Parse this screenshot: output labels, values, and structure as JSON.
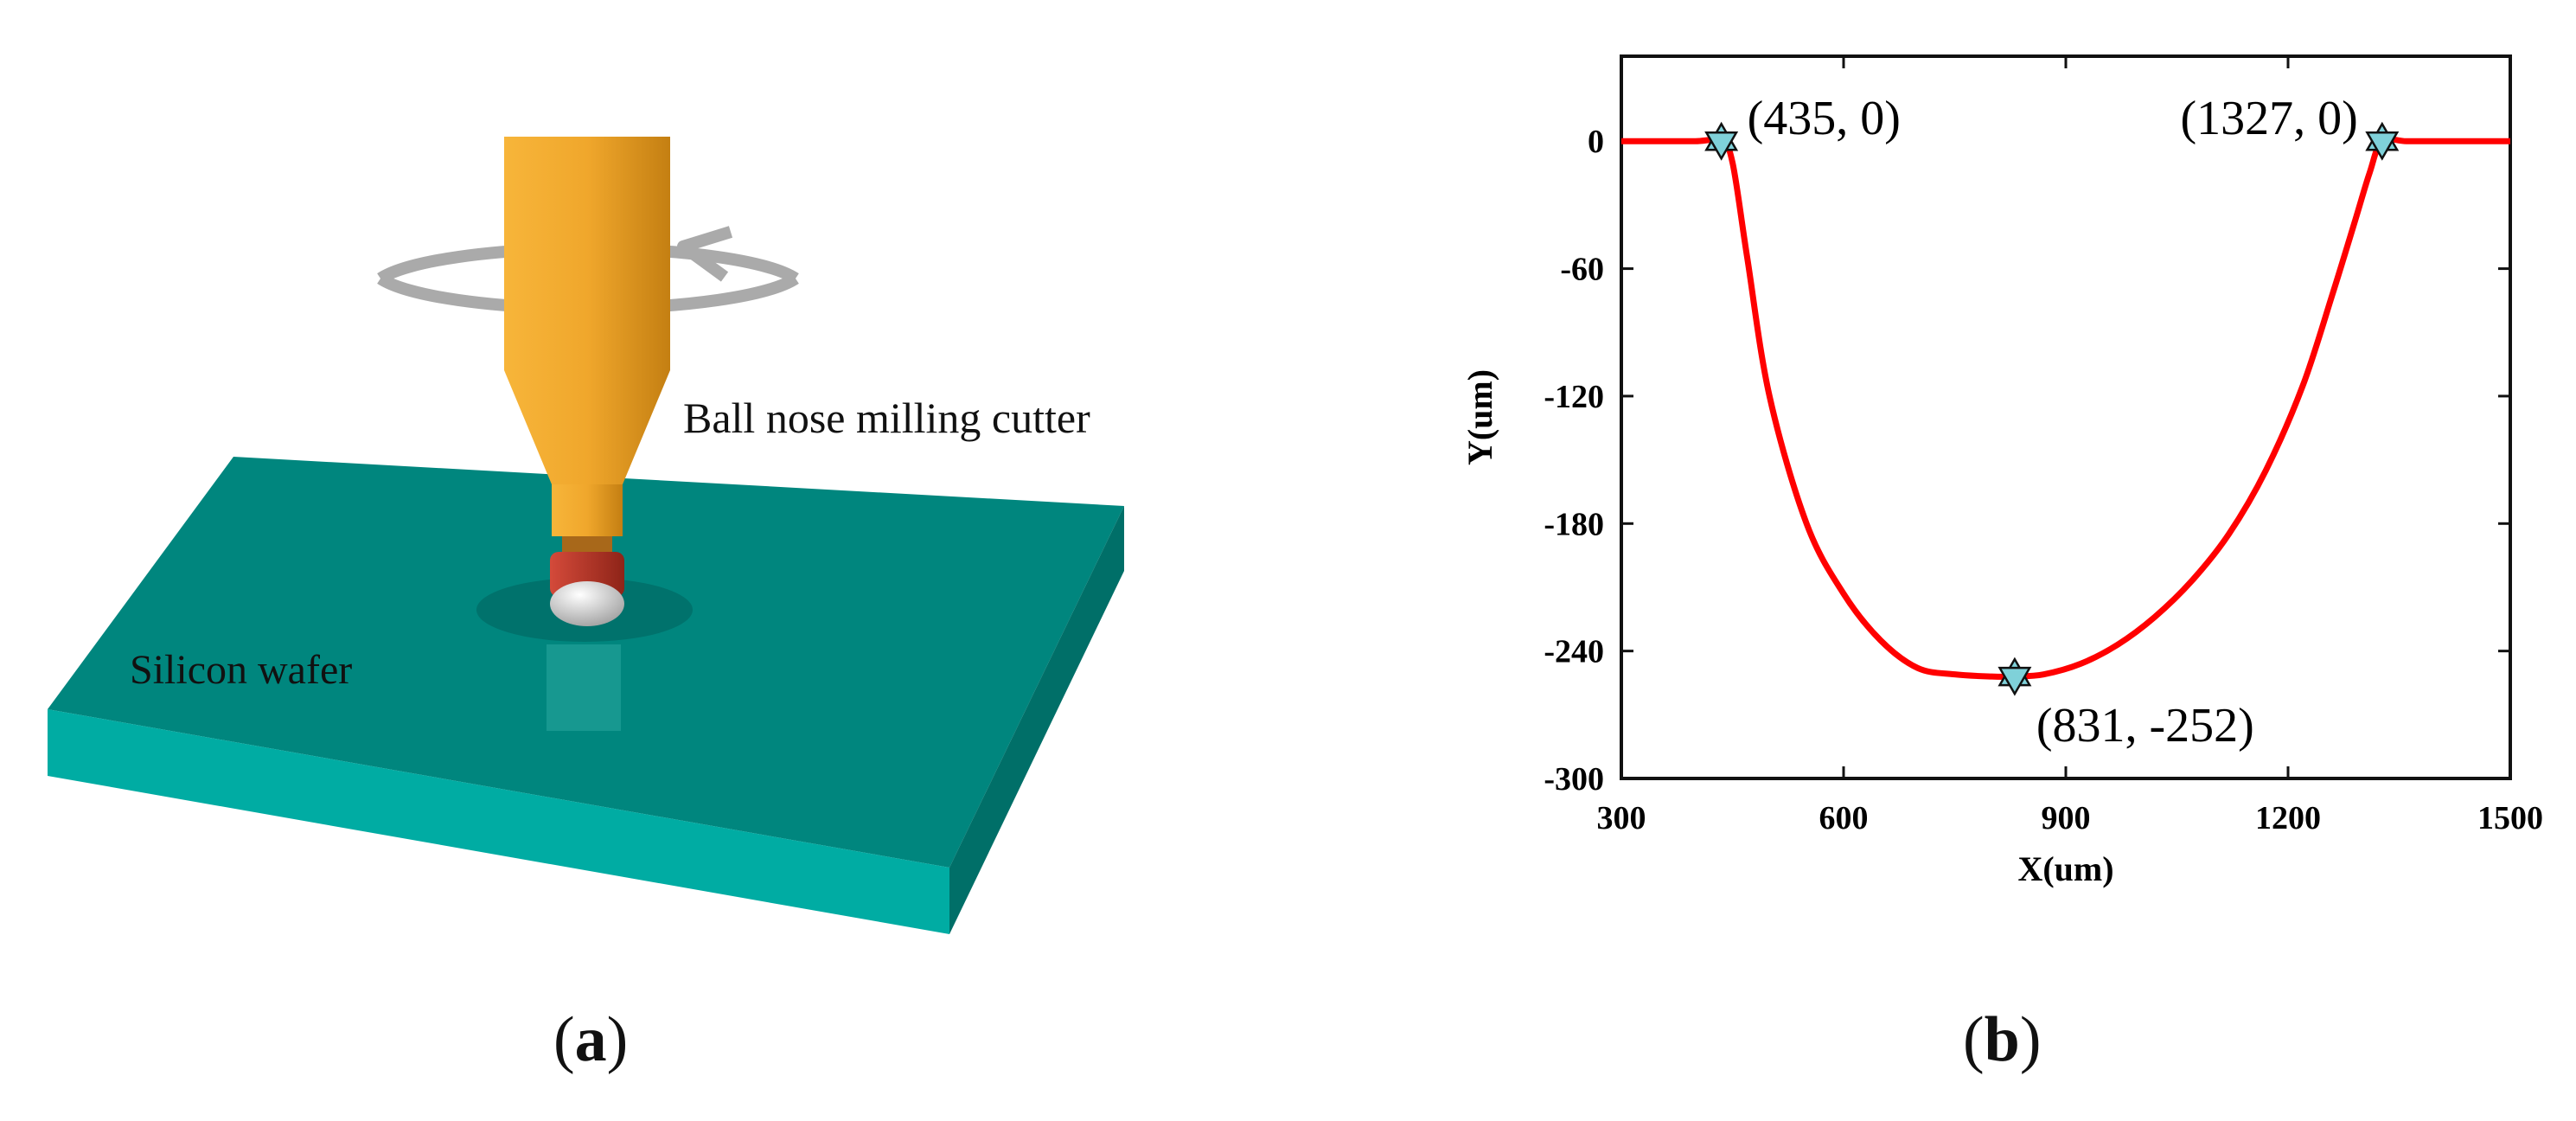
{
  "panel_a": {
    "cutter_label": "Ball nose milling cutter",
    "wafer_label": "Silicon wafer",
    "colors": {
      "wafer_top": "#00857d",
      "wafer_front": "#00a99f",
      "wafer_side": "#006d67",
      "cutter": "#f0a72c",
      "cutter_dark": "#c47f12",
      "tip_red": "#c0392b",
      "arrow": "#aaaaaa"
    }
  },
  "panel_b": {
    "chart_data": {
      "type": "line",
      "xlabel": "X(um)",
      "ylabel": "Y(um)",
      "xlim": [
        300,
        1500
      ],
      "ylim": [
        -300,
        40
      ],
      "xticks": [
        300,
        600,
        900,
        1200,
        1500
      ],
      "yticks": [
        0,
        -60,
        -120,
        -180,
        -240,
        -300
      ],
      "grid": false,
      "series": [
        {
          "color": "#ff0000",
          "x": [
            300,
            350,
            400,
            435,
            450,
            470,
            500,
            550,
            600,
            650,
            700,
            750,
            800,
            831,
            870,
            920,
            970,
            1020,
            1070,
            1120,
            1170,
            1220,
            1260,
            1290,
            1310,
            1327,
            1360,
            1420,
            1500
          ],
          "y": [
            0,
            0,
            0,
            0,
            -10,
            -55,
            -120,
            -180,
            -213,
            -235,
            -248,
            -251,
            -252,
            -252,
            -251,
            -246,
            -237,
            -224,
            -207,
            -185,
            -155,
            -115,
            -72,
            -38,
            -15,
            0,
            0,
            0,
            0
          ]
        }
      ],
      "markers": [
        {
          "x": 435,
          "y": 0,
          "label": "(435, 0)",
          "label_pos": "right"
        },
        {
          "x": 1327,
          "y": 0,
          "label": "(1327, 0)",
          "label_pos": "left"
        },
        {
          "x": 831,
          "y": -252,
          "label": "(831, -252)",
          "label_pos": "below-right"
        }
      ],
      "marker_color": "#7fd1d9"
    }
  },
  "captions": {
    "a_open": "(",
    "a_letter": "a",
    "a_close": ")",
    "b_open": "(",
    "b_letter": "b",
    "b_close": ")"
  }
}
